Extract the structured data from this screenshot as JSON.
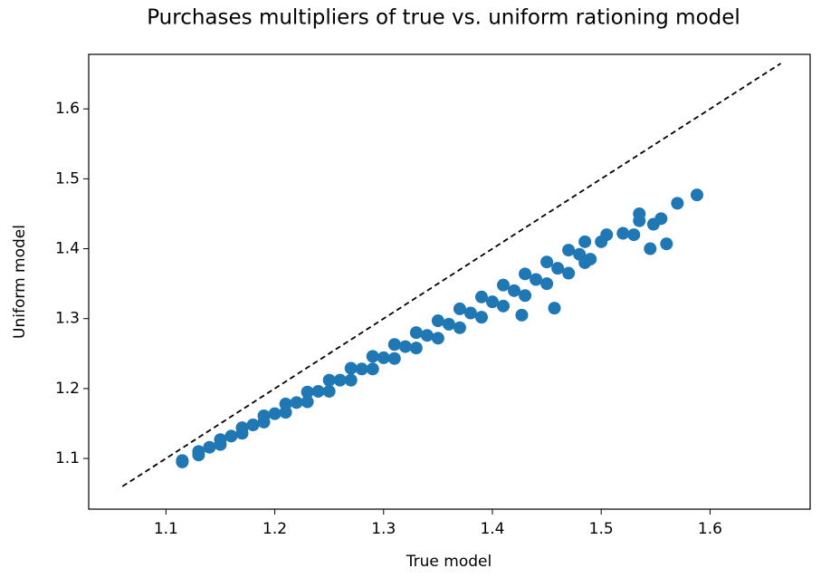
{
  "chart_data": {
    "type": "scatter",
    "title": "Purchases multipliers of true vs. uniform rationing model",
    "xlabel": "True model",
    "ylabel": "Uniform model",
    "color": "#1f77b4",
    "x": [
      1.115,
      1.115,
      1.13,
      1.13,
      1.15,
      1.15,
      1.17,
      1.17,
      1.19,
      1.19,
      1.21,
      1.21,
      1.23,
      1.23,
      1.25,
      1.25,
      1.27,
      1.27,
      1.29,
      1.29,
      1.31,
      1.31,
      1.33,
      1.33,
      1.35,
      1.35,
      1.37,
      1.37,
      1.39,
      1.39,
      1.41,
      1.41,
      1.43,
      1.43,
      1.45,
      1.45,
      1.47,
      1.47,
      1.485,
      1.485,
      1.14,
      1.16,
      1.18,
      1.2,
      1.22,
      1.24,
      1.26,
      1.28,
      1.3,
      1.32,
      1.34,
      1.36,
      1.38,
      1.4,
      1.42,
      1.44,
      1.46,
      1.48,
      1.535,
      1.535,
      1.588,
      1.57,
      1.555,
      1.548,
      1.53,
      1.52,
      1.505,
      1.56,
      1.545,
      1.427,
      1.457,
      1.49,
      1.5
    ],
    "y": [
      1.097,
      1.095,
      1.11,
      1.105,
      1.127,
      1.12,
      1.144,
      1.136,
      1.161,
      1.152,
      1.178,
      1.166,
      1.195,
      1.181,
      1.212,
      1.196,
      1.229,
      1.212,
      1.246,
      1.228,
      1.263,
      1.243,
      1.28,
      1.258,
      1.297,
      1.272,
      1.314,
      1.287,
      1.331,
      1.302,
      1.348,
      1.318,
      1.364,
      1.333,
      1.381,
      1.35,
      1.398,
      1.365,
      1.41,
      1.38,
      1.116,
      1.132,
      1.148,
      1.164,
      1.18,
      1.196,
      1.212,
      1.228,
      1.244,
      1.26,
      1.276,
      1.292,
      1.308,
      1.324,
      1.34,
      1.356,
      1.372,
      1.392,
      1.45,
      1.44,
      1.477,
      1.465,
      1.443,
      1.435,
      1.42,
      1.422,
      1.42,
      1.407,
      1.4,
      1.305,
      1.315,
      1.385,
      1.41
    ],
    "reference_line": {
      "x": [
        1.06,
        1.665
      ],
      "y": [
        1.06,
        1.665
      ]
    },
    "xlim": [
      1.029,
      1.692
    ],
    "ylim": [
      1.0275,
      1.678
    ],
    "xticks": [
      1.1,
      1.2,
      1.3,
      1.4,
      1.5,
      1.6
    ],
    "yticks": [
      1.1,
      1.2,
      1.3,
      1.4,
      1.5,
      1.6
    ]
  }
}
